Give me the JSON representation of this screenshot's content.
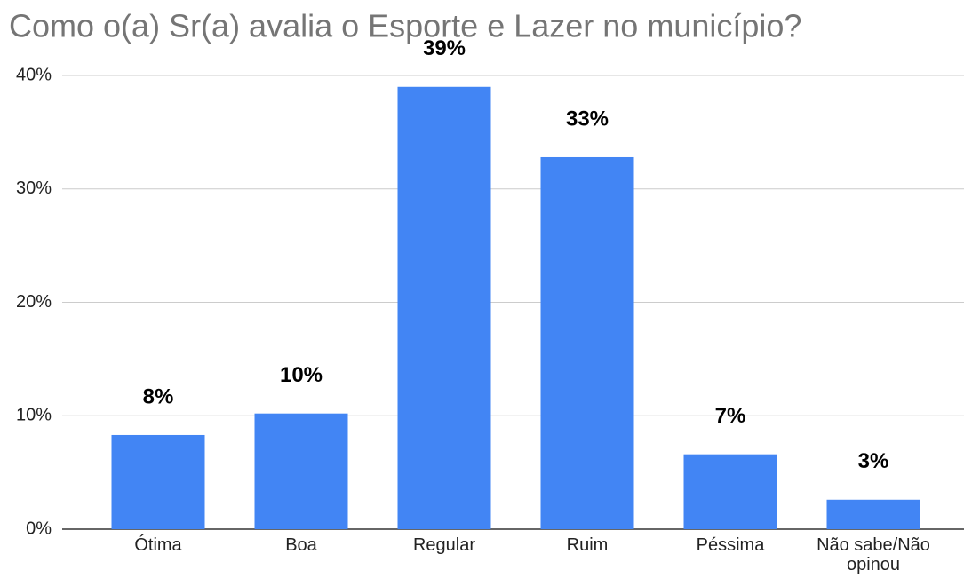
{
  "chart_data": {
    "type": "bar",
    "title": "Como o(a) Sr(a) avalia o Esporte e Lazer no município?",
    "categories": [
      "Ótima",
      "Boa",
      "Regular",
      "Ruim",
      "Péssima",
      "Não sabe/Não opinou"
    ],
    "values": [
      8.3,
      10.2,
      39.0,
      32.8,
      6.6,
      2.6
    ],
    "value_labels": [
      "8%",
      "10%",
      "39%",
      "33%",
      "7%",
      "3%"
    ],
    "color": "#4285f4",
    "ylim": [
      0,
      40
    ],
    "yticks": [
      {
        "value": 0,
        "label": "0%"
      },
      {
        "value": 10,
        "label": "10%"
      },
      {
        "value": 20,
        "label": "20%"
      },
      {
        "value": 30,
        "label": "30%"
      },
      {
        "value": 40,
        "label": "40%"
      }
    ],
    "grid": true
  }
}
